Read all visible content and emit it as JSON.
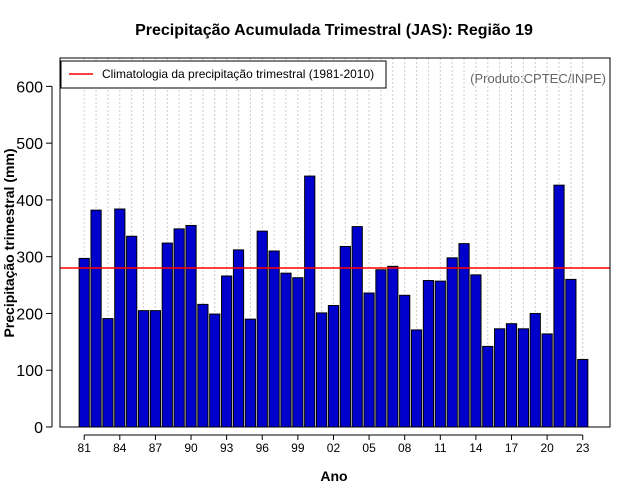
{
  "chart_data": {
    "type": "bar",
    "title": "Precipitação Acumulada Trimestral (JAS): Região 19",
    "xlabel": "Ano",
    "ylabel": "Precipitação trimestral (mm)",
    "ylim": [
      0,
      650
    ],
    "yticks": [
      0,
      100,
      200,
      300,
      400,
      500,
      600
    ],
    "xtick_labels": [
      "81",
      "84",
      "87",
      "90",
      "93",
      "96",
      "99",
      "02",
      "05",
      "08",
      "11",
      "14",
      "17",
      "20",
      "23"
    ],
    "years": [
      1981,
      1982,
      1983,
      1984,
      1985,
      1986,
      1987,
      1988,
      1989,
      1990,
      1991,
      1992,
      1993,
      1994,
      1995,
      1996,
      1997,
      1998,
      1999,
      2000,
      2001,
      2002,
      2003,
      2004,
      2005,
      2006,
      2007,
      2008,
      2009,
      2010,
      2011,
      2012,
      2013,
      2014,
      2015,
      2016,
      2017,
      2018,
      2019,
      2020,
      2021,
      2022,
      2023
    ],
    "values": [
      297,
      382,
      191,
      384,
      336,
      205,
      205,
      324,
      349,
      355,
      216,
      199,
      266,
      312,
      190,
      345,
      310,
      271,
      263,
      442,
      201,
      214,
      318,
      353,
      236,
      277,
      283,
      232,
      171,
      258,
      257,
      298,
      323,
      268,
      142,
      173,
      182,
      173,
      200,
      164,
      426,
      260,
      119
    ],
    "climatology": 280,
    "grid": true,
    "bar_color": "#0000cd",
    "line_color": "#ff0000",
    "legend": {
      "label": "Climatologia da precipitação trimestral (1981-2010)",
      "position": "top-left"
    },
    "source": "(Produto:CPTEC/INPE)"
  }
}
